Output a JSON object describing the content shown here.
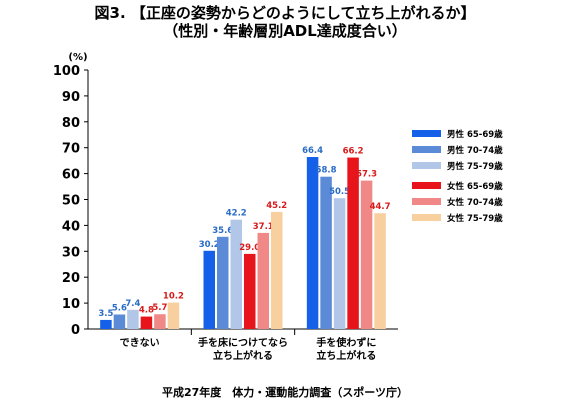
{
  "header": {
    "title_line1": "図3. 【正座の姿勢からどのようにして立ち上がれるか】",
    "title_line2": "（性別・年齢層別ADL達成度合い）"
  },
  "source": "平成27年度　体力・運動能力調査（スポーツ庁）",
  "chart_data": {
    "type": "bar",
    "y_unit_label": "(%)",
    "ylim": [
      0,
      100
    ],
    "yticks": [
      0,
      10,
      20,
      30,
      40,
      50,
      60,
      70,
      80,
      90,
      100
    ],
    "grid": false,
    "legend_position": "right",
    "categories": [
      [
        "できない"
      ],
      [
        "手を床につけてなら",
        "立ち上がれる"
      ],
      [
        "手を使わずに",
        "立ち上がれる"
      ]
    ],
    "series": [
      {
        "name": "男性 65-69歳",
        "color": "#1560e8",
        "label_color": "#2a6cc6",
        "values": [
          3.5,
          30.2,
          66.4
        ]
      },
      {
        "name": "男性 70-74歳",
        "color": "#5b8ad6",
        "label_color": "#2a6cc6",
        "values": [
          5.6,
          35.6,
          58.8
        ]
      },
      {
        "name": "男性 75-79歳",
        "color": "#b2c7e8",
        "label_color": "#2a6cc6",
        "values": [
          7.4,
          42.2,
          50.5
        ]
      },
      {
        "name": "女性 65-69歳",
        "color": "#e8141b",
        "label_color": "#d81b1b",
        "values": [
          4.8,
          29.0,
          66.2
        ]
      },
      {
        "name": "女性 70-74歳",
        "color": "#f08888",
        "label_color": "#d81b1b",
        "values": [
          5.7,
          37.1,
          57.3
        ]
      },
      {
        "name": "女性 75-79歳",
        "color": "#f8cf9e",
        "label_color": "#d81b1b",
        "values": [
          10.2,
          45.2,
          44.7
        ]
      }
    ]
  }
}
